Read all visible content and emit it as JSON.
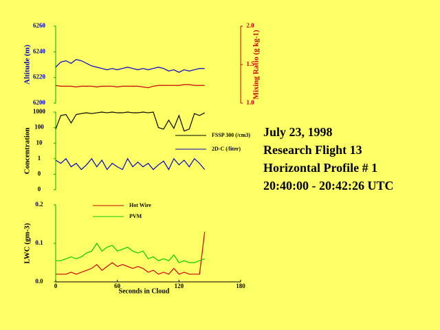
{
  "caption": [
    "July 23, 1998",
    "Research Flight 13",
    "Horizontal Profile # 1",
    "20:40:00 - 20:42:26 UTC"
  ],
  "chart_data": [
    {
      "type": "line",
      "xlim": [
        0,
        180
      ],
      "x": [
        0,
        5,
        10,
        15,
        20,
        25,
        30,
        35,
        40,
        45,
        50,
        55,
        60,
        65,
        70,
        75,
        80,
        85,
        90,
        95,
        100,
        105,
        110,
        115,
        120,
        125,
        130,
        135,
        140,
        145
      ],
      "ylabel": "Altitude (m)",
      "ylim": [
        6200,
        6260
      ],
      "yticks": [
        6200,
        6220,
        6240,
        6260
      ],
      "y2label": "Mixing Ratio (g kg-1)",
      "y2lim": [
        1,
        2
      ],
      "y2ticks": [
        {
          "value": 1,
          "label": "1.0"
        },
        1.5,
        {
          "value": 2,
          "label": "2.0"
        }
      ],
      "series": [
        {
          "color": "#0000cc",
          "values": [
            6228,
            6232,
            6233,
            6231,
            6234,
            6233,
            6231,
            6229,
            6228,
            6227,
            6226,
            6227,
            6226,
            6227,
            6228,
            6227,
            6226,
            6227,
            6226,
            6227,
            6228,
            6227,
            6225,
            6226,
            6224,
            6226,
            6225,
            6226,
            6227,
            6227
          ]
        },
        {
          "color": "#cc0000",
          "axis": "y2",
          "values": [
            1.23,
            1.22,
            1.22,
            1.22,
            1.21,
            1.22,
            1.22,
            1.22,
            1.21,
            1.22,
            1.22,
            1.22,
            1.21,
            1.22,
            1.22,
            1.22,
            1.22,
            1.21,
            1.2,
            1.22,
            1.23,
            1.23,
            1.23,
            1.23,
            1.23,
            1.24,
            1.24,
            1.23,
            1.23,
            1.23
          ]
        }
      ]
    },
    {
      "type": "line",
      "xlim": [
        0,
        180
      ],
      "log_y": true,
      "x": [
        0,
        5,
        10,
        15,
        20,
        25,
        30,
        35,
        40,
        45,
        50,
        55,
        60,
        65,
        70,
        75,
        80,
        85,
        90,
        95,
        100,
        105,
        110,
        115,
        120,
        125,
        130,
        135,
        140,
        145
      ],
      "ylabel": "Concentration",
      "ylim": [
        0.01,
        1000
      ],
      "yticks": [
        1000,
        100,
        10,
        1,
        {
          "value": 0.1,
          "label": "0"
        },
        {
          "value": 0.01,
          "label": "0"
        }
      ],
      "legend": true,
      "series": [
        {
          "name": "FSSP 300 (/cm3)",
          "color": "#000000",
          "values": [
            80,
            600,
            700,
            200,
            700,
            800,
            900,
            800,
            900,
            1000,
            900,
            1000,
            900,
            900,
            1000,
            900,
            900,
            1000,
            900,
            1000,
            100,
            80,
            300,
            90,
            600,
            60,
            80,
            800,
            600,
            900
          ]
        },
        {
          "name": "2D-C (/liter)",
          "color": "#0000cc",
          "values": [
            0.8,
            0.5,
            1,
            0.3,
            0.5,
            0.2,
            0.4,
            1,
            0.3,
            0.8,
            0.2,
            0.5,
            0.3,
            0.2,
            1,
            0.3,
            0.6,
            0.3,
            0.5,
            0.2,
            0.4,
            0.7,
            0.2,
            1,
            0.4,
            0.8,
            0.3,
            1,
            0.5,
            0.2
          ]
        }
      ]
    },
    {
      "type": "line",
      "xlim": [
        0,
        180
      ],
      "xticks": [
        0,
        60,
        120,
        180
      ],
      "xlabel": "Seconds in Cloud",
      "x": [
        0,
        5,
        10,
        15,
        20,
        25,
        30,
        35,
        40,
        45,
        50,
        55,
        60,
        65,
        70,
        75,
        80,
        85,
        90,
        95,
        100,
        105,
        110,
        115,
        120,
        125,
        130,
        135,
        140,
        145
      ],
      "ylabel": "LWC (gm-3)",
      "ylim": [
        0,
        0.2
      ],
      "yticks": [
        {
          "value": 0,
          "label": "0.0"
        },
        0.1,
        0.2
      ],
      "legend": true,
      "series": [
        {
          "name": "Hot Wire",
          "color": "#cc0000",
          "values": [
            0.02,
            0.02,
            0.02,
            0.025,
            0.02,
            0.025,
            0.03,
            0.035,
            0.045,
            0.03,
            0.04,
            0.05,
            0.04,
            0.045,
            0.04,
            0.035,
            0.04,
            0.035,
            0.025,
            0.03,
            0.02,
            0.025,
            0.02,
            0.035,
            0.02,
            0.025,
            0.02,
            0.02,
            0.02,
            0.13
          ]
        },
        {
          "name": "PVM",
          "color": "#00cc00",
          "values": [
            0.055,
            0.055,
            0.06,
            0.065,
            0.06,
            0.065,
            0.075,
            0.08,
            0.1,
            0.08,
            0.09,
            0.095,
            0.08,
            0.085,
            0.09,
            0.08,
            0.075,
            0.08,
            0.06,
            0.065,
            0.055,
            0.06,
            0.055,
            0.07,
            0.05,
            0.055,
            0.05,
            0.05,
            0.055,
            0.06
          ]
        }
      ]
    }
  ]
}
